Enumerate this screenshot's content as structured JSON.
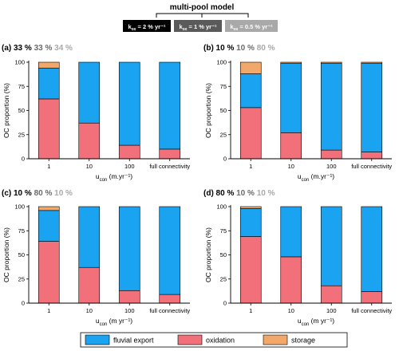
{
  "header": {
    "title": "multi-pool model",
    "boxes": [
      {
        "label": "k_ox = 2 % yr⁻¹",
        "bg": "#000000",
        "fg": "#ffffff"
      },
      {
        "label": "k_ox = 1 % yr⁻¹",
        "bg": "#5a5a5a",
        "fg": "#ffffff"
      },
      {
        "label": "k_ox = 0.5 % yr⁻¹",
        "bg": "#a9a9a9",
        "fg": "#ffffff"
      }
    ]
  },
  "colors": {
    "fluvial_export": "#1aa3f0",
    "oxidation": "#f2707a",
    "storage": "#f2a86b",
    "pct_1": "#000000",
    "pct_2": "#6b6b6b",
    "pct_3": "#a9a9a9"
  },
  "legend": {
    "items": [
      {
        "key": "fluvial_export",
        "label": "fluvial export"
      },
      {
        "key": "oxidation",
        "label": "oxidation"
      },
      {
        "key": "storage",
        "label": "storage"
      }
    ]
  },
  "chart_data": [
    {
      "type": "bar",
      "stacked": true,
      "panel_label": "(a)",
      "percents": [
        "33 %",
        "33 %",
        "34 %"
      ],
      "categories": [
        "1",
        "10",
        "100",
        "full connectivity"
      ],
      "series": [
        {
          "name": "oxidation",
          "values": [
            62,
            37,
            14,
            10
          ]
        },
        {
          "name": "fluvial export",
          "values": [
            32,
            63,
            86,
            90
          ]
        },
        {
          "name": "storage",
          "values": [
            6,
            0,
            0,
            0
          ]
        }
      ],
      "xlabel": "u_con (m.yr⁻¹)",
      "ylabel": "OC proportion (%)",
      "yticks": [
        "0",
        "25",
        "50",
        "75",
        "100"
      ],
      "ylim": [
        0,
        100
      ]
    },
    {
      "type": "bar",
      "stacked": true,
      "panel_label": "(b)",
      "percents": [
        "10 %",
        "10 %",
        "80 %"
      ],
      "categories": [
        "1",
        "10",
        "100",
        "full connectivity"
      ],
      "series": [
        {
          "name": "oxidation",
          "values": [
            53,
            27,
            9,
            7
          ]
        },
        {
          "name": "fluvial export",
          "values": [
            35,
            72,
            90,
            92
          ]
        },
        {
          "name": "storage",
          "values": [
            12,
            1,
            1,
            1
          ]
        }
      ],
      "xlabel": "u_con (m.yr⁻¹)",
      "ylabel": "OC proportion (%)",
      "yticks": [
        "0",
        "25",
        "50",
        "75",
        "100"
      ],
      "ylim": [
        0,
        100
      ]
    },
    {
      "type": "bar",
      "stacked": true,
      "panel_label": "(c)",
      "percents": [
        "10 %",
        "80 %",
        "10 %"
      ],
      "categories": [
        "1",
        "10",
        "100",
        "full connectivity"
      ],
      "series": [
        {
          "name": "oxidation",
          "values": [
            64,
            37,
            13,
            9
          ]
        },
        {
          "name": "fluvial export",
          "values": [
            32,
            63,
            87,
            91
          ]
        },
        {
          "name": "storage",
          "values": [
            4,
            0,
            0,
            0
          ]
        }
      ],
      "xlabel": "u_con (m yr⁻¹)",
      "ylabel": "OC proportion (%)",
      "yticks": [
        "0",
        "25",
        "50",
        "75",
        "100"
      ],
      "ylim": [
        0,
        100
      ]
    },
    {
      "type": "bar",
      "stacked": true,
      "panel_label": "(d)",
      "percents": [
        "80 %",
        "10 %",
        "10 %"
      ],
      "categories": [
        "1",
        "10",
        "100",
        "full connectivity"
      ],
      "series": [
        {
          "name": "oxidation",
          "values": [
            69,
            48,
            18,
            12
          ]
        },
        {
          "name": "fluvial export",
          "values": [
            29,
            52,
            82,
            88
          ]
        },
        {
          "name": "storage",
          "values": [
            2,
            0,
            0,
            0
          ]
        }
      ],
      "xlabel": "u_con (m yr⁻¹)",
      "ylabel": "OC proportion (%)",
      "yticks": [
        "0",
        "25",
        "50",
        "75",
        "100"
      ],
      "ylim": [
        0,
        100
      ]
    }
  ]
}
